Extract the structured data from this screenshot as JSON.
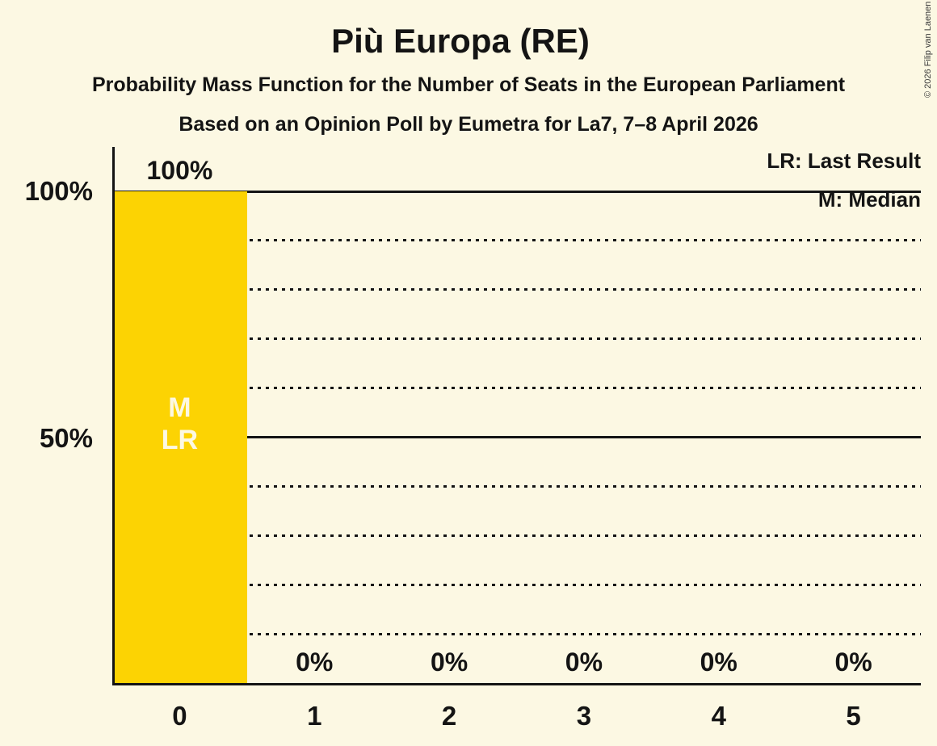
{
  "copyright": "© 2026 Filip van Laenen",
  "colors": {
    "background": "#FCF8E3",
    "bar": "#FCD303",
    "text": "#141414",
    "bar_annotation_text": "#FCF8E3"
  },
  "chart_data": {
    "type": "bar",
    "title": "Più Europa (RE)",
    "subtitle1": "Probability Mass Function for the Number of Seats in the European Parliament",
    "subtitle2": "Based on an Opinion Poll by Eumetra for La7, 7–8 April 2026",
    "categories": [
      "0",
      "1",
      "2",
      "3",
      "4",
      "5"
    ],
    "values": [
      100,
      0,
      0,
      0,
      0,
      0
    ],
    "value_labels": [
      "100%",
      "0%",
      "0%",
      "0%",
      "0%",
      "0%"
    ],
    "ylim": [
      0,
      100
    ],
    "y_ticks": [
      {
        "value": 100,
        "label": "100%"
      },
      {
        "value": 50,
        "label": "50%"
      }
    ],
    "gridlines": {
      "solid": [
        100,
        50
      ],
      "dotted": [
        90,
        80,
        70,
        60,
        40,
        30,
        20,
        10
      ]
    },
    "legend": [
      "LR: Last Result",
      "M: Median"
    ],
    "legend_position": "top-right",
    "bar_annotations": {
      "0": [
        "M",
        "LR"
      ]
    }
  }
}
